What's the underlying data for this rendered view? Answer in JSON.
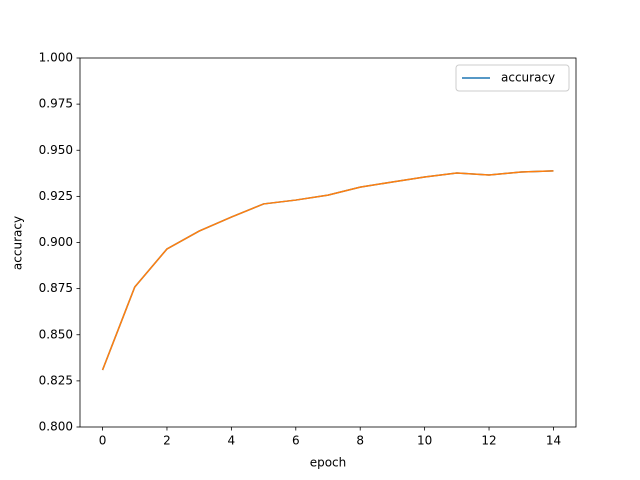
{
  "chart_data": {
    "type": "line",
    "xlabel": "epoch",
    "ylabel": "accuracy",
    "x": [
      0,
      1,
      2,
      3,
      4,
      5,
      6,
      7,
      8,
      9,
      10,
      11,
      12,
      13,
      14
    ],
    "series": [
      {
        "name": "accuracy",
        "color": "#1f77b4",
        "values": [
          0.8309,
          0.8759,
          0.8965,
          0.9062,
          0.9138,
          0.9209,
          0.923,
          0.9257,
          0.93,
          0.9328,
          0.9355,
          0.9377,
          0.9366,
          0.9382,
          0.9388
        ]
      },
      {
        "color": "#ff7f0e",
        "values": [
          0.8309,
          0.8759,
          0.8965,
          0.9062,
          0.9138,
          0.9209,
          0.923,
          0.9257,
          0.93,
          0.9328,
          0.9355,
          0.9377,
          0.9366,
          0.9382,
          0.9388
        ]
      }
    ],
    "xlim": [
      -0.7,
      14.7
    ],
    "xticks": [
      0,
      2,
      4,
      6,
      8,
      10,
      12,
      14
    ],
    "ylim": [
      0.8,
      1.0
    ],
    "yticks": [
      {
        "value": 0.8,
        "label": "0.800"
      },
      {
        "value": 0.825,
        "label": "0.825"
      },
      {
        "value": 0.85,
        "label": "0.850"
      },
      {
        "value": 0.875,
        "label": "0.875"
      },
      {
        "value": 0.9,
        "label": "0.900"
      },
      {
        "value": 0.925,
        "label": "0.925"
      },
      {
        "value": 0.95,
        "label": "0.950"
      },
      {
        "value": 0.975,
        "label": "0.975"
      },
      {
        "value": 1.0,
        "label": "1.000"
      }
    ],
    "legend": "upper right",
    "grid": false
  }
}
